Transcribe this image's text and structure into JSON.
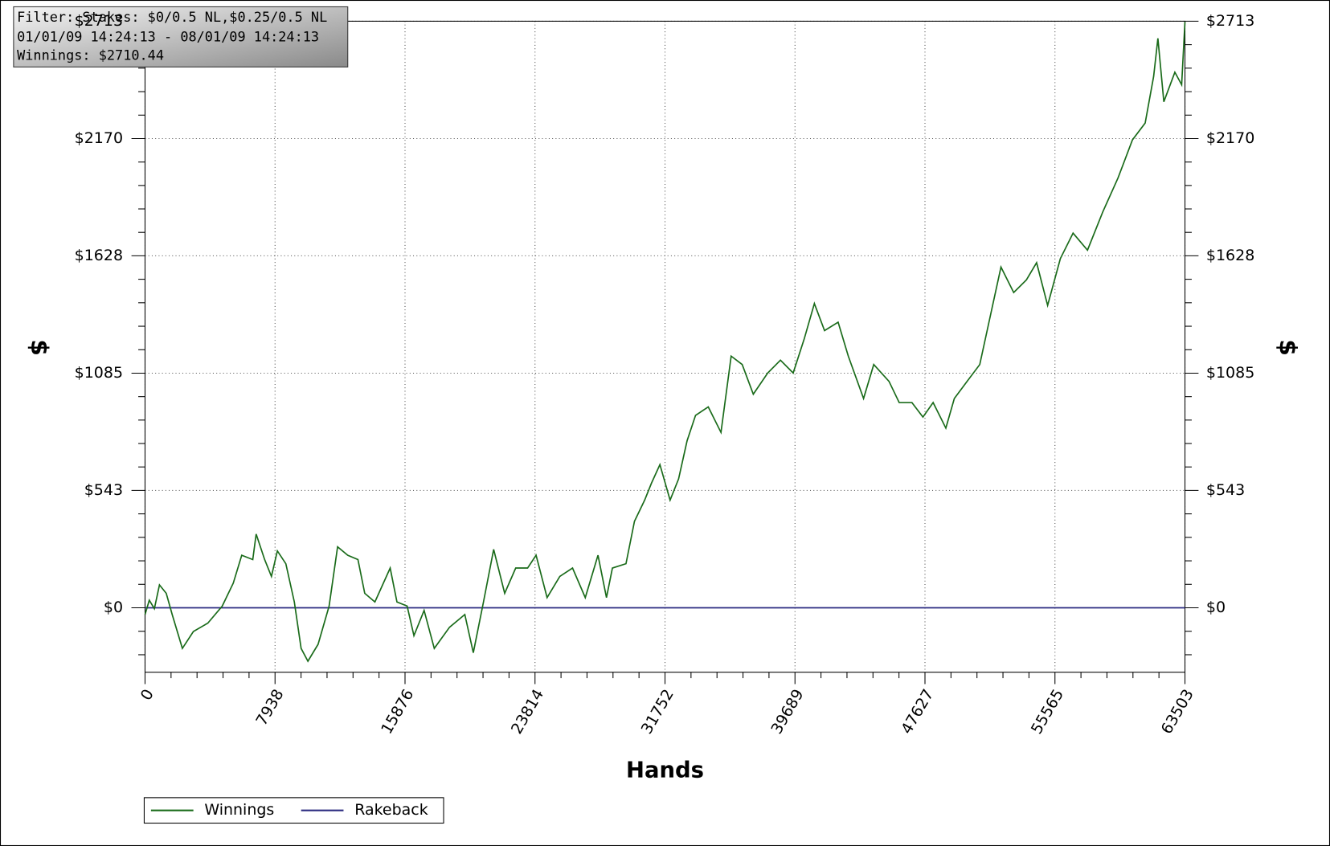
{
  "chart_data": {
    "type": "line",
    "info": [
      "Filter: Stakes: $0/0.5 NL,$0.25/0.5 NL",
      "01/01/09 14:24:13 - 08/01/09 14:24:13",
      "Winnings: $2710.44"
    ],
    "x_label": "Hands",
    "y_label": "$",
    "y2_label": "$",
    "x": [
      0,
      259,
      570,
      880,
      1295,
      1658,
      2279,
      2953,
      3833,
      4714,
      5387,
      5905,
      6579,
      6786,
      7304,
      7718,
      8081,
      8599,
      9117,
      9531,
      9946,
      10567,
      11241,
      11759,
      12381,
      13002,
      13416,
      14038,
      14971,
      15385,
      16007,
      16421,
      17043,
      17664,
      18597,
      19529,
      20047,
      20668,
      21290,
      21963,
      22637,
      23362,
      23880,
      24553,
      25330,
      26107,
      26884,
      27661,
      28179,
      28542,
      29370,
      29888,
      30510,
      30924,
      31442,
      32064,
      32582,
      33100,
      33618,
      34395,
      35172,
      35794,
      36467,
      37141,
      38022,
      38799,
      39576,
      40249,
      40871,
      41493,
      42322,
      42944,
      43876,
      44498,
      45430,
      46052,
      46829,
      47503,
      48124,
      48901,
      49419,
      50197,
      50974,
      51647,
      52269,
      53046,
      53823,
      54445,
      55118,
      55895,
      56672,
      57553,
      58485,
      59418,
      60298,
      61075,
      61593,
      61852,
      62215,
      62888,
      63303,
      63503
    ],
    "series": [
      {
        "name": "Winnings",
        "color": "#1a6b1a",
        "values": [
          -31,
          35,
          -4,
          106,
          67,
          -31,
          -188,
          -110,
          -71,
          8,
          114,
          243,
          223,
          341,
          223,
          145,
          263,
          204,
          27,
          -188,
          -247,
          -169,
          8,
          282,
          243,
          223,
          67,
          27,
          184,
          27,
          8,
          -129,
          -12,
          -188,
          -90,
          -31,
          -208,
          27,
          270,
          67,
          184,
          184,
          243,
          47,
          145,
          184,
          47,
          243,
          47,
          184,
          204,
          400,
          498,
          576,
          662,
          498,
          596,
          772,
          890,
          929,
          811,
          1164,
          1125,
          988,
          1086,
          1145,
          1086,
          1243,
          1407,
          1282,
          1321,
          1164,
          968,
          1125,
          1047,
          949,
          949,
          882,
          949,
          831,
          968,
          1047,
          1125,
          1360,
          1576,
          1458,
          1517,
          1596,
          1399,
          1615,
          1733,
          1654,
          1831,
          1988,
          2164,
          2242,
          2458,
          2634,
          2340,
          2477,
          2419,
          2710
        ]
      },
      {
        "name": "Rakeback",
        "color": "#2b2b80",
        "values": [
          0,
          0,
          0,
          0,
          0,
          0,
          0,
          0,
          0,
          0,
          0,
          0,
          0,
          0,
          0,
          0,
          0,
          0,
          0,
          0,
          0,
          0,
          0,
          0,
          0,
          0,
          0,
          0,
          0,
          0,
          0,
          0,
          0,
          0,
          0,
          0,
          0,
          0,
          0,
          0,
          0,
          0,
          0,
          0,
          0,
          0,
          0,
          0,
          0,
          0,
          0,
          0,
          0,
          0,
          0,
          0,
          0,
          0,
          0,
          0,
          0,
          0,
          0,
          0,
          0,
          0,
          0,
          0,
          0,
          0,
          0,
          0,
          0,
          0,
          0,
          0,
          0,
          0,
          0,
          0,
          0,
          0,
          0,
          0,
          0,
          0,
          0,
          0,
          0,
          0,
          0,
          0,
          0,
          0,
          0,
          0,
          0,
          0,
          0,
          0,
          0,
          0
        ]
      }
    ],
    "xlim": [
      0,
      63503
    ],
    "xticks": [
      0,
      7938,
      15876,
      23814,
      31752,
      39689,
      47627,
      55565,
      63503
    ],
    "ylim": [
      -298,
      2713
    ],
    "yticks": [
      {
        "value": 0,
        "label": "$0"
      },
      {
        "value": 543,
        "label": "$543"
      },
      {
        "value": 1085,
        "label": "$1085"
      },
      {
        "value": 1628,
        "label": "$1628"
      },
      {
        "value": 2170,
        "label": "$2170"
      },
      {
        "value": 2713,
        "label": "$2713"
      }
    ],
    "grid": true,
    "legend": "bottom-left"
  }
}
